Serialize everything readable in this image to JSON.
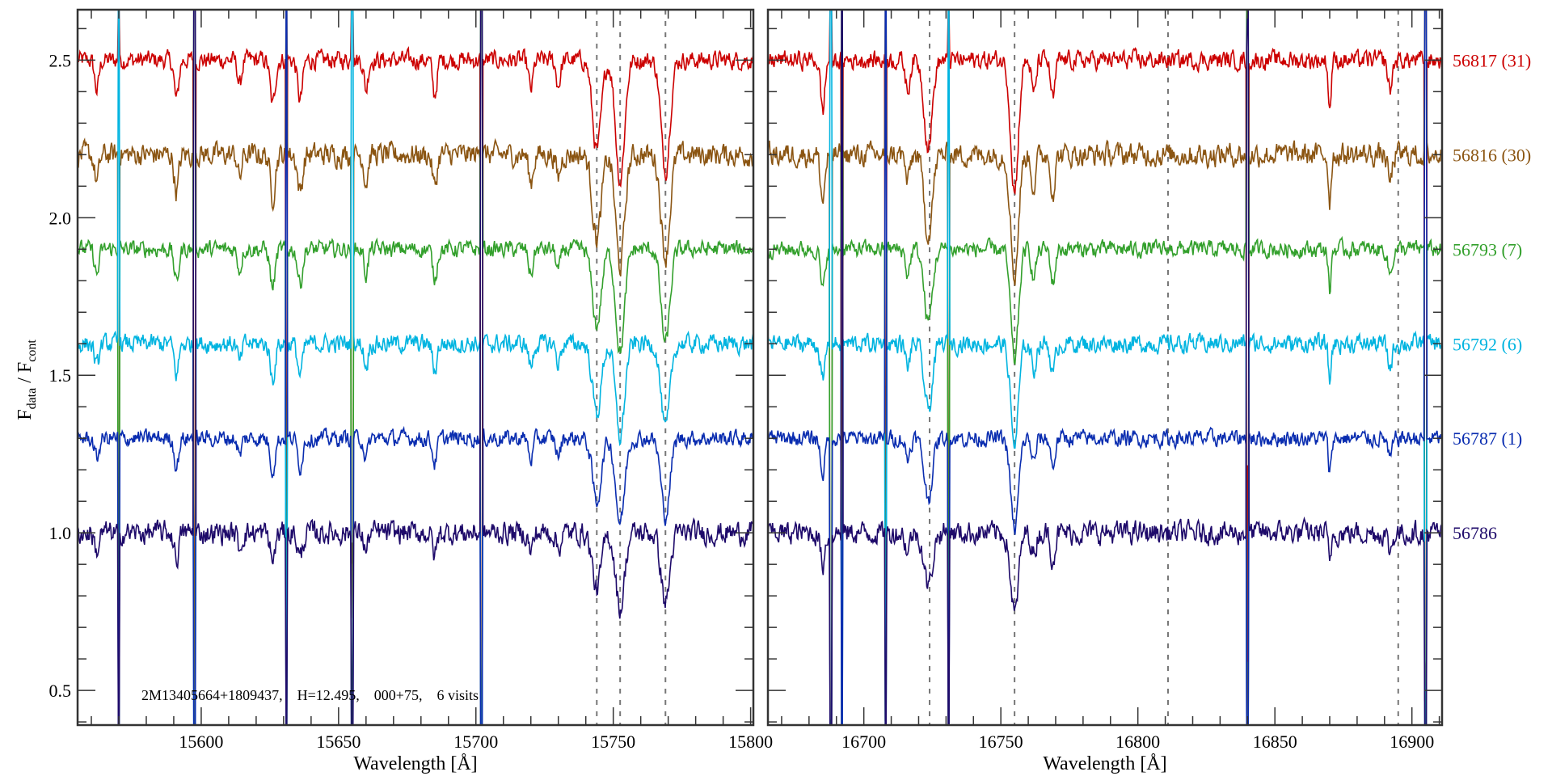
{
  "chart_data": {
    "type": "line",
    "ylabel_main": "F",
    "ylabel_sub1": "data",
    "ylabel_sep": " / F",
    "ylabel_sub2": "cont",
    "ylim": [
      0.39,
      2.66
    ],
    "y_ticks": [
      0.5,
      1.0,
      1.5,
      2.0,
      2.5
    ],
    "y_tick_labels": [
      "0.5",
      "1.0",
      "1.5",
      "2.0",
      "2.5"
    ],
    "annotation": "2M13405664+1809437,    H=12.495,    000+75,    6 visits",
    "panels": [
      {
        "xlabel": "Wavelength [Å]",
        "xlim": [
          15555,
          15801
        ],
        "x_ticks": [
          15600,
          15650,
          15700,
          15750,
          15800
        ],
        "x_tick_labels": [
          "15600",
          "15650",
          "15700",
          "15750",
          "15800"
        ],
        "dashed_lines": [
          15744,
          15752.5,
          15769
        ],
        "strong_lines": [
          15570,
          15597.5,
          15631,
          15655,
          15702
        ],
        "absorption_lines": [
          {
            "wl": 15744,
            "depth": 0.18,
            "width": 1.6
          },
          {
            "wl": 15752.5,
            "depth": 0.24,
            "width": 1.6
          },
          {
            "wl": 15769,
            "depth": 0.22,
            "width": 1.6
          },
          {
            "wl": 15591,
            "depth": 0.08,
            "width": 0.8
          },
          {
            "wl": 15626,
            "depth": 0.09,
            "width": 0.9
          },
          {
            "wl": 15636,
            "depth": 0.08,
            "width": 0.9
          },
          {
            "wl": 15614,
            "depth": 0.05,
            "width": 0.7
          },
          {
            "wl": 15660,
            "depth": 0.06,
            "width": 0.7
          },
          {
            "wl": 15685,
            "depth": 0.07,
            "width": 0.8
          },
          {
            "wl": 15720,
            "depth": 0.06,
            "width": 0.8
          },
          {
            "wl": 15730,
            "depth": 0.05,
            "width": 0.8
          },
          {
            "wl": 15562,
            "depth": 0.06,
            "width": 0.8
          }
        ]
      },
      {
        "xlabel": "Wavelength [Å]",
        "xlim": [
          16665,
          16911
        ],
        "x_ticks": [
          16700,
          16750,
          16800,
          16850,
          16900
        ],
        "x_tick_labels": [
          "16700",
          "16750",
          "16800",
          "16850",
          "16900"
        ],
        "dashed_lines": [
          16724,
          16755,
          16811,
          16895
        ],
        "strong_lines": [
          16688,
          16692,
          16708,
          16731,
          16840,
          16905
        ],
        "absorption_lines": [
          {
            "wl": 16723.5,
            "depth": 0.17,
            "width": 1.5
          },
          {
            "wl": 16755,
            "depth": 0.26,
            "width": 1.4
          },
          {
            "wl": 16685,
            "depth": 0.1,
            "width": 0.8
          },
          {
            "wl": 16716,
            "depth": 0.06,
            "width": 0.8
          },
          {
            "wl": 16762,
            "depth": 0.07,
            "width": 0.8
          },
          {
            "wl": 16769,
            "depth": 0.08,
            "width": 0.8
          },
          {
            "wl": 16870,
            "depth": 0.1,
            "width": 0.5
          },
          {
            "wl": 16892,
            "depth": 0.06,
            "width": 0.8
          }
        ]
      }
    ],
    "series": [
      {
        "name": "56817 (31)",
        "offset": 2.5,
        "color": "#cc0000",
        "noise": 0.028
      },
      {
        "name": "56816 (30)",
        "offset": 2.2,
        "color": "#8b5512",
        "noise": 0.035
      },
      {
        "name": "56793 (7)",
        "offset": 1.9,
        "color": "#33a02c",
        "noise": 0.025
      },
      {
        "name": "56792 (6)",
        "offset": 1.6,
        "color": "#00b4e0",
        "noise": 0.028
      },
      {
        "name": "56787 (1)",
        "offset": 1.3,
        "color": "#0a2db0",
        "noise": 0.025
      },
      {
        "name": "56786",
        "offset": 1.0,
        "color": "#1e0a6a",
        "noise": 0.035
      }
    ]
  }
}
